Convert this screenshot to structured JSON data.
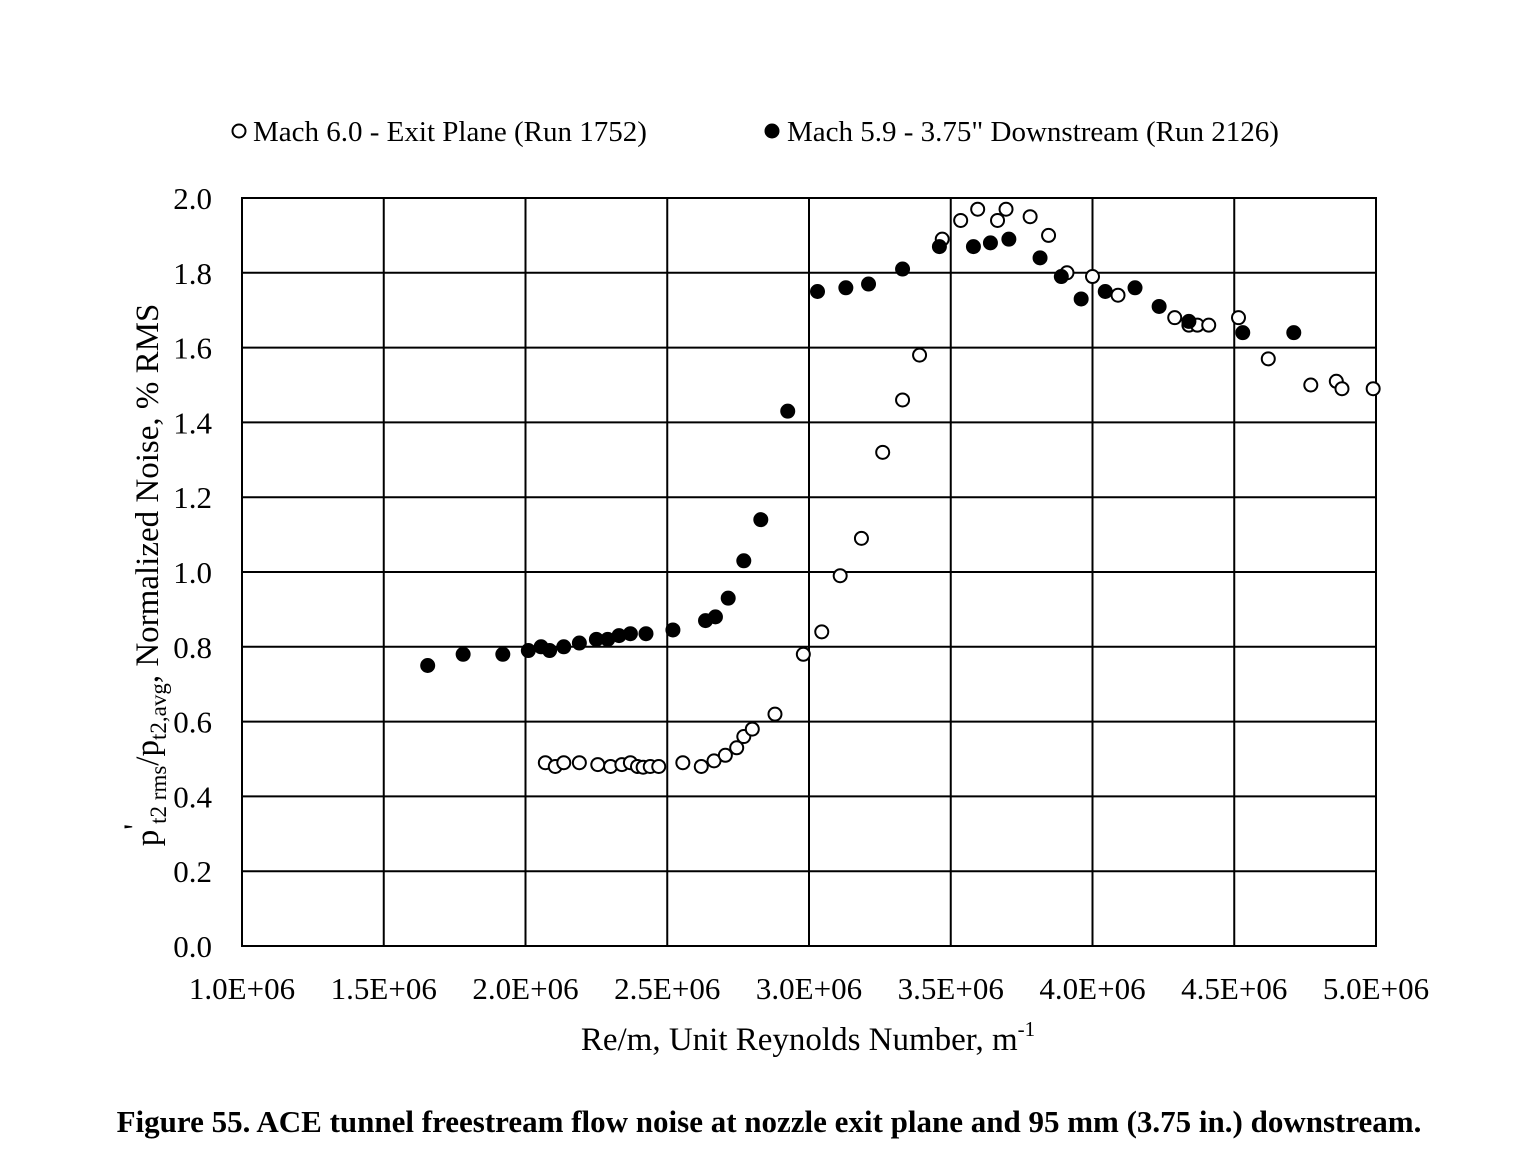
{
  "caption": "Figure 55. ACE tunnel freestream flow noise at nozzle exit plane and 95 mm (3.75 in.) downstream.",
  "chart_data": {
    "type": "scatter",
    "xlabel": "Re/m, Unit Reynolds Number, m",
    "xlabel_sup": "-1",
    "ylabel": {
      "p": "p",
      "prime": "'",
      "sub1": "t2 rms",
      "slash": "/p",
      "sub2": "t2,avg",
      "rest": ", Normalized Noise, % RMS"
    },
    "xlim": [
      1000000,
      5000000
    ],
    "ylim": [
      0.0,
      2.0
    ],
    "x_ticks": [
      {
        "value": 1000000,
        "label": "1.0E+06"
      },
      {
        "value": 1500000,
        "label": "1.5E+06"
      },
      {
        "value": 2000000,
        "label": "2.0E+06"
      },
      {
        "value": 2500000,
        "label": "2.5E+06"
      },
      {
        "value": 3000000,
        "label": "3.0E+06"
      },
      {
        "value": 3500000,
        "label": "3.5E+06"
      },
      {
        "value": 4000000,
        "label": "4.0E+06"
      },
      {
        "value": 4500000,
        "label": "4.5E+06"
      },
      {
        "value": 5000000,
        "label": "5.0E+06"
      }
    ],
    "y_ticks": [
      {
        "value": 0.0,
        "label": "0.0"
      },
      {
        "value": 0.2,
        "label": "0.2"
      },
      {
        "value": 0.4,
        "label": "0.4"
      },
      {
        "value": 0.6,
        "label": "0.6"
      },
      {
        "value": 0.8,
        "label": "0.8"
      },
      {
        "value": 1.0,
        "label": "1.0"
      },
      {
        "value": 1.2,
        "label": "1.2"
      },
      {
        "value": 1.4,
        "label": "1.4"
      },
      {
        "value": 1.6,
        "label": "1.6"
      },
      {
        "value": 1.8,
        "label": "1.8"
      },
      {
        "value": 2.0,
        "label": "2.0"
      }
    ],
    "grid": true,
    "legend_position": "top",
    "series": [
      {
        "name": "Mach 6.0 - Exit Plane (Run 1752)",
        "marker": "open-circle",
        "points": [
          [
            2070000,
            0.49
          ],
          [
            2105000,
            0.48
          ],
          [
            2135000,
            0.49
          ],
          [
            2190000,
            0.49
          ],
          [
            2255000,
            0.485
          ],
          [
            2300000,
            0.48
          ],
          [
            2340000,
            0.485
          ],
          [
            2370000,
            0.49
          ],
          [
            2395000,
            0.48
          ],
          [
            2415000,
            0.478
          ],
          [
            2440000,
            0.48
          ],
          [
            2470000,
            0.48
          ],
          [
            2555000,
            0.49
          ],
          [
            2620000,
            0.48
          ],
          [
            2665000,
            0.495
          ],
          [
            2705000,
            0.51
          ],
          [
            2745000,
            0.53
          ],
          [
            2770000,
            0.56
          ],
          [
            2800000,
            0.58
          ],
          [
            2880000,
            0.62
          ],
          [
            2980000,
            0.78
          ],
          [
            3045000,
            0.84
          ],
          [
            3110000,
            0.99
          ],
          [
            3185000,
            1.09
          ],
          [
            3260000,
            1.32
          ],
          [
            3330000,
            1.46
          ],
          [
            3390000,
            1.58
          ],
          [
            3470000,
            1.89
          ],
          [
            3535000,
            1.94
          ],
          [
            3595000,
            1.97
          ],
          [
            3665000,
            1.94
          ],
          [
            3695000,
            1.97
          ],
          [
            3780000,
            1.95
          ],
          [
            3845000,
            1.9
          ],
          [
            3910000,
            1.8
          ],
          [
            4000000,
            1.79
          ],
          [
            4090000,
            1.74
          ],
          [
            4290000,
            1.68
          ],
          [
            4340000,
            1.66
          ],
          [
            4370000,
            1.66
          ],
          [
            4410000,
            1.66
          ],
          [
            4515000,
            1.68
          ],
          [
            4620000,
            1.57
          ],
          [
            4770000,
            1.5
          ],
          [
            4860000,
            1.51
          ],
          [
            4880000,
            1.49
          ],
          [
            4990000,
            1.49
          ]
        ]
      },
      {
        "name": "Mach 5.9 - 3.75\" Downstream (Run 2126)",
        "marker": "filled-circle",
        "points": [
          [
            1655000,
            0.75
          ],
          [
            1780000,
            0.78
          ],
          [
            1920000,
            0.78
          ],
          [
            2010000,
            0.79
          ],
          [
            2055000,
            0.8
          ],
          [
            2085000,
            0.79
          ],
          [
            2135000,
            0.8
          ],
          [
            2190000,
            0.81
          ],
          [
            2250000,
            0.82
          ],
          [
            2290000,
            0.82
          ],
          [
            2330000,
            0.83
          ],
          [
            2370000,
            0.835
          ],
          [
            2425000,
            0.835
          ],
          [
            2520000,
            0.845
          ],
          [
            2635000,
            0.87
          ],
          [
            2670000,
            0.88
          ],
          [
            2715000,
            0.93
          ],
          [
            2770000,
            1.03
          ],
          [
            2830000,
            1.14
          ],
          [
            2925000,
            1.43
          ],
          [
            3030000,
            1.75
          ],
          [
            3130000,
            1.76
          ],
          [
            3210000,
            1.77
          ],
          [
            3330000,
            1.81
          ],
          [
            3460000,
            1.87
          ],
          [
            3580000,
            1.87
          ],
          [
            3640000,
            1.88
          ],
          [
            3705000,
            1.89
          ],
          [
            3815000,
            1.84
          ],
          [
            3890000,
            1.79
          ],
          [
            3960000,
            1.73
          ],
          [
            4045000,
            1.75
          ],
          [
            4150000,
            1.76
          ],
          [
            4235000,
            1.71
          ],
          [
            4340000,
            1.67
          ],
          [
            4530000,
            1.64
          ],
          [
            4710000,
            1.64
          ]
        ]
      }
    ]
  }
}
